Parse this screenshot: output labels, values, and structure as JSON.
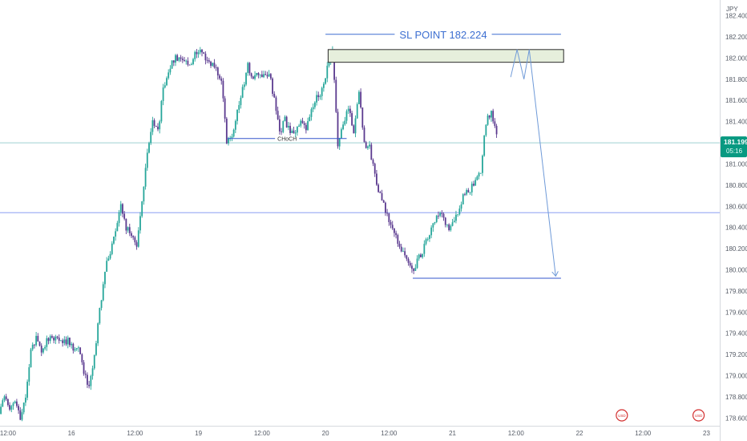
{
  "chart_data": {
    "type": "candlestick",
    "currency": "JPY",
    "y_ticks": [
      "182.400",
      "182.200",
      "182.000",
      "181.800",
      "181.600",
      "181.400",
      "181.200",
      "181.000",
      "180.800",
      "180.600",
      "180.400",
      "180.200",
      "180.000",
      "179.800",
      "179.600",
      "179.400",
      "179.200",
      "179.000",
      "178.800",
      "178.600"
    ],
    "ylim": [
      178.58,
      182.48
    ],
    "x_ticks": [
      {
        "label": "12:00",
        "t": 0
      },
      {
        "label": "16",
        "t": 12
      },
      {
        "label": "12:00",
        "t": 24
      },
      {
        "label": "19",
        "t": 36
      },
      {
        "label": "12:00",
        "t": 48
      },
      {
        "label": "20",
        "t": 60
      },
      {
        "label": "12:00",
        "t": 72
      },
      {
        "label": "21",
        "t": 84
      },
      {
        "label": "12:00",
        "t": 96
      },
      {
        "label": "22",
        "t": 108
      },
      {
        "label": "12:00",
        "t": 120
      },
      {
        "label": "23",
        "t": 132
      }
    ],
    "xlim": [
      -1.5,
      134.5
    ],
    "last_price": {
      "value": 181.199,
      "label": "181.199",
      "countdown": "05:16"
    },
    "hline_blue": 180.54,
    "price_path": [
      [
        -1.5,
        178.64
      ],
      [
        -0.5,
        178.82
      ],
      [
        0.5,
        178.66
      ],
      [
        1.5,
        178.74
      ],
      [
        2.5,
        178.6
      ],
      [
        3.5,
        178.82
      ],
      [
        4.5,
        179.26
      ],
      [
        5.5,
        179.35
      ],
      [
        6.5,
        179.22
      ],
      [
        7.5,
        179.33
      ],
      [
        8.5,
        179.35
      ],
      [
        9.5,
        179.37
      ],
      [
        10.5,
        179.31
      ],
      [
        11.5,
        179.33
      ],
      [
        12.5,
        179.27
      ],
      [
        13.5,
        179.24
      ],
      [
        14.5,
        179.05
      ],
      [
        15.5,
        178.88
      ],
      [
        16.5,
        179.2
      ],
      [
        17.5,
        179.62
      ],
      [
        18.5,
        180.0
      ],
      [
        19.5,
        180.18
      ],
      [
        20.5,
        180.38
      ],
      [
        21.5,
        180.62
      ],
      [
        22.5,
        180.4
      ],
      [
        23.5,
        180.32
      ],
      [
        24.5,
        180.24
      ],
      [
        25.5,
        180.62
      ],
      [
        26.5,
        181.1
      ],
      [
        27.5,
        181.4
      ],
      [
        28.5,
        181.3
      ],
      [
        29.5,
        181.7
      ],
      [
        30.5,
        181.88
      ],
      [
        31.5,
        181.98
      ],
      [
        32.5,
        182.02
      ],
      [
        33.5,
        181.98
      ],
      [
        34.5,
        181.92
      ],
      [
        35.5,
        182.05
      ],
      [
        36.5,
        182.1
      ],
      [
        37.5,
        181.98
      ],
      [
        38.5,
        181.96
      ],
      [
        39.5,
        181.9
      ],
      [
        40.5,
        181.8
      ],
      [
        41.5,
        181.22
      ],
      [
        42.5,
        181.28
      ],
      [
        43.5,
        181.5
      ],
      [
        44.5,
        181.7
      ],
      [
        45.5,
        181.92
      ],
      [
        46.5,
        181.8
      ],
      [
        47.5,
        181.85
      ],
      [
        48.5,
        181.82
      ],
      [
        49.5,
        181.86
      ],
      [
        50.5,
        181.6
      ],
      [
        51.5,
        181.28
      ],
      [
        52.5,
        181.42
      ],
      [
        53.5,
        181.28
      ],
      [
        54.5,
        181.32
      ],
      [
        55.5,
        181.38
      ],
      [
        56.5,
        181.32
      ],
      [
        57.5,
        181.5
      ],
      [
        58.5,
        181.62
      ],
      [
        59.5,
        181.7
      ],
      [
        60.5,
        181.9
      ],
      [
        61.5,
        182.05
      ],
      [
        62.5,
        181.2
      ],
      [
        63.5,
        181.35
      ],
      [
        64.5,
        181.55
      ],
      [
        65.5,
        181.3
      ],
      [
        66.5,
        181.7
      ],
      [
        67.5,
        181.2
      ],
      [
        68.5,
        181.15
      ],
      [
        69.5,
        180.9
      ],
      [
        70.5,
        180.7
      ],
      [
        71.5,
        180.55
      ],
      [
        72.5,
        180.42
      ],
      [
        73.5,
        180.3
      ],
      [
        74.5,
        180.2
      ],
      [
        75.5,
        180.1
      ],
      [
        76.5,
        179.99
      ],
      [
        77.5,
        180.08
      ],
      [
        78.5,
        180.18
      ],
      [
        79.5,
        180.3
      ],
      [
        80.5,
        180.42
      ],
      [
        81.5,
        180.52
      ],
      [
        82.5,
        180.48
      ],
      [
        83.5,
        180.38
      ],
      [
        84.5,
        180.45
      ],
      [
        85.5,
        180.6
      ],
      [
        86.5,
        180.72
      ],
      [
        87.5,
        180.76
      ],
      [
        88.5,
        180.82
      ],
      [
        89.5,
        180.92
      ],
      [
        90.5,
        181.4
      ],
      [
        91.5,
        181.5
      ],
      [
        92.5,
        181.25
      ]
    ],
    "annotations": {
      "sl_label": "SL POINT 182.224",
      "choch_label": "CHoCH",
      "sl_line": {
        "x1": 60,
        "x2": 104.5,
        "y": 182.224
      },
      "zone": {
        "x1": 60.5,
        "x2": 105,
        "y1": 182.08,
        "y2": 181.96
      },
      "choch_line": {
        "x1": 41.5,
        "x2": 64,
        "y": 181.24
      },
      "target_line": {
        "x1": 76.5,
        "x2": 104.5,
        "y": 179.92
      },
      "projection": [
        [
          95,
          181.82
        ],
        [
          96.2,
          182.08
        ],
        [
          97.5,
          181.8
        ],
        [
          98.5,
          182.08
        ],
        [
          103.5,
          179.94
        ]
      ]
    },
    "colors": {
      "up": "#26a69a",
      "down": "#5b3a8f",
      "accent": "#2962ff",
      "last_price": "#089981",
      "sl": "#3d6fd1",
      "zone_fill": "#e6efdc",
      "line_blue": "#7a90f0",
      "line_teal": "#9fd0d2"
    },
    "event_markers": [
      {
        "t": 116,
        "label": "USD"
      },
      {
        "t": 130.5,
        "label": "USD"
      }
    ]
  }
}
